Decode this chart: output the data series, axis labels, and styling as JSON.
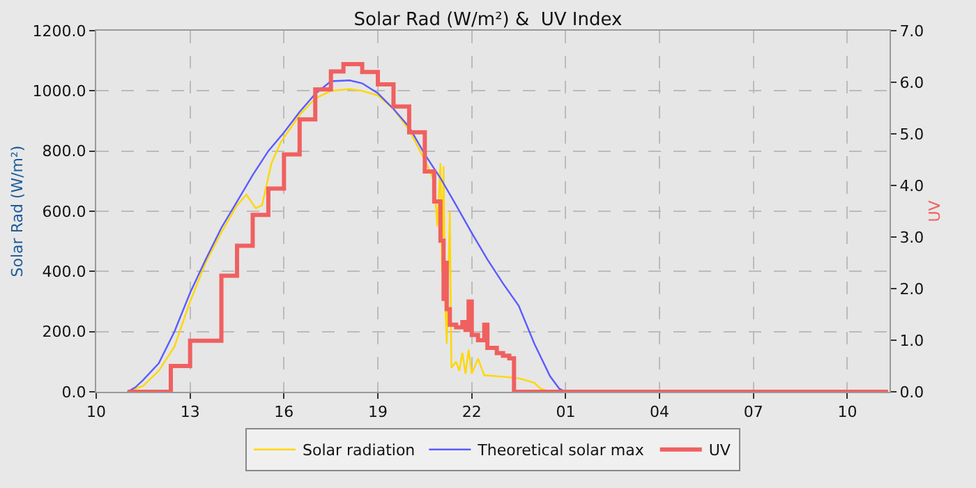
{
  "chart_data": {
    "type": "line",
    "title": "Solar Rad (W/m²) &  UV Index",
    "ylabel": "Solar Rad (W/m²)",
    "y2label": "UV",
    "xlim": [
      "--01-01T10:00",
      "--01-02T11:21"
    ],
    "xticks": [
      {
        "value": "--01-01T10:00",
        "label": "10"
      },
      {
        "value": "--01-01T13:00",
        "label": "13"
      },
      {
        "value": "--01-01T16:00",
        "label": "16"
      },
      {
        "value": "--01-01T19:00",
        "label": "19"
      },
      {
        "value": "--01-01T22:00",
        "label": "22"
      },
      {
        "value": "--01-02T01:00",
        "label": "01"
      },
      {
        "value": "--01-02T04:00",
        "label": "04"
      },
      {
        "value": "--01-02T07:00",
        "label": "07"
      },
      {
        "value": "--01-02T10:00",
        "label": "10"
      }
    ],
    "ylim": [
      0,
      1200
    ],
    "yticks": [
      {
        "value": 0,
        "label": "0.0"
      },
      {
        "value": 200,
        "label": "200.0"
      },
      {
        "value": 400,
        "label": "400.0"
      },
      {
        "value": 600,
        "label": "600.0"
      },
      {
        "value": 800,
        "label": "800.0"
      },
      {
        "value": 1000,
        "label": "1000.0"
      },
      {
        "value": 1200,
        "label": "1200.0"
      }
    ],
    "y2lim": [
      0,
      7
    ],
    "y2ticks": [
      {
        "value": 0,
        "label": "0.0"
      },
      {
        "value": 1,
        "label": "1.0"
      },
      {
        "value": 2,
        "label": "2.0"
      },
      {
        "value": 3,
        "label": "3.0"
      },
      {
        "value": 4,
        "label": "4.0"
      },
      {
        "value": 5,
        "label": "5.0"
      },
      {
        "value": 6,
        "label": "6.0"
      },
      {
        "value": 7,
        "label": "7.0"
      }
    ],
    "grid": true,
    "legend": "bottom",
    "line_style": "solid",
    "marker": "none",
    "series": [
      {
        "name": "Solar radiation",
        "color": "#ffd700",
        "x": [
          "--01-01T11:00",
          "--01-01T11:30",
          "--01-01T12:00",
          "--01-01T12:30",
          "--01-01T13:00",
          "--01-01T13:30",
          "--01-01T14:00",
          "--01-01T14:30",
          "--01-01T14:48",
          "--01-01T15:06",
          "--01-01T15:18",
          "--01-01T15:36",
          "--01-01T15:54",
          "--01-01T16:30",
          "--01-01T17:00",
          "--01-01T17:30",
          "--01-01T18:06",
          "--01-01T18:30",
          "--01-01T19:00",
          "--01-01T19:30",
          "--01-01T20:00",
          "--01-01T20:30",
          "--01-01T20:48",
          "--01-01T20:54",
          "--01-01T21:00",
          "--01-01T21:03",
          "--01-01T21:06",
          "--01-01T21:09",
          "--01-01T21:12",
          "--01-01T21:18",
          "--01-01T21:21",
          "--01-01T21:30",
          "--01-01T21:36",
          "--01-01T21:42",
          "--01-01T21:48",
          "--01-01T21:54",
          "--01-01T22:00",
          "--01-01T22:12",
          "--01-01T22:24",
          "--01-01T23:00",
          "--01-01T23:30",
          "--01-02T00:00",
          "--01-02T00:12",
          "--01-02T00:30",
          "--01-02T06:00",
          "--01-02T11:18"
        ],
        "values": [
          0,
          20,
          70,
          150,
          300,
          430,
          530,
          620,
          655,
          610,
          620,
          760,
          830,
          920,
          975,
          1000,
          1006,
          1000,
          985,
          940,
          870,
          770,
          700,
          550,
          760,
          400,
          750,
          300,
          160,
          600,
          80,
          100,
          70,
          130,
          60,
          140,
          60,
          110,
          55,
          50,
          45,
          30,
          10,
          0,
          0,
          0
        ]
      },
      {
        "name": "Theoretical solar max",
        "color": "#5b5bff",
        "x": [
          "--01-01T11:00",
          "--01-01T11:15",
          "--01-01T11:30",
          "--01-01T12:00",
          "--01-01T12:30",
          "--01-01T13:00",
          "--01-01T13:30",
          "--01-01T14:00",
          "--01-01T14:30",
          "--01-01T15:00",
          "--01-01T15:30",
          "--01-01T16:00",
          "--01-01T16:30",
          "--01-01T17:00",
          "--01-01T17:30",
          "--01-01T18:06",
          "--01-01T18:30",
          "--01-01T19:00",
          "--01-01T19:30",
          "--01-01T20:00",
          "--01-01T20:30",
          "--01-01T21:00",
          "--01-01T21:30",
          "--01-01T22:00",
          "--01-01T22:30",
          "--01-01T23:00",
          "--01-01T23:30",
          "--01-02T00:00",
          "--01-02T00:30",
          "--01-02T00:48",
          "--01-02T01:00",
          "--01-02T06:00",
          "--01-02T11:18"
        ],
        "values": [
          0,
          15,
          39,
          95,
          200,
          329,
          440,
          545,
          632,
          720,
          800,
          862,
          930,
          990,
          1032,
          1035,
          1025,
          992,
          940,
          880,
          789,
          710,
          620,
          528,
          440,
          360,
          286,
          160,
          52,
          10,
          0,
          0,
          0
        ]
      },
      {
        "name": "UV",
        "type": "step",
        "axis": "y2",
        "color": "#f06060",
        "x": [
          "--01-01T11:00",
          "--01-01T12:23",
          "--01-01T13:00",
          "--01-01T14:00",
          "--01-01T14:30",
          "--01-01T15:00",
          "--01-01T15:30",
          "--01-01T16:00",
          "--01-01T16:30",
          "--01-01T17:00",
          "--01-01T17:30",
          "--01-01T17:54",
          "--01-01T18:30",
          "--01-01T19:00",
          "--01-01T19:30",
          "--01-01T20:00",
          "--01-01T20:30",
          "--01-01T20:48",
          "--01-01T21:00",
          "--01-01T21:06",
          "--01-01T21:09",
          "--01-01T21:12",
          "--01-01T21:18",
          "--01-01T21:30",
          "--01-01T21:42",
          "--01-01T21:48",
          "--01-01T21:54",
          "--01-01T22:00",
          "--01-01T22:12",
          "--01-01T22:24",
          "--01-01T22:30",
          "--01-01T22:48",
          "--01-01T23:00",
          "--01-01T23:12",
          "--01-01T23:21",
          "--01-02T06:00",
          "--01-02T11:18"
        ],
        "values": [
          0,
          0.5,
          0.99,
          2.25,
          2.83,
          3.43,
          3.94,
          4.6,
          5.28,
          5.86,
          6.21,
          6.35,
          6.2,
          5.96,
          5.53,
          5.03,
          4.27,
          3.69,
          2.93,
          1.8,
          2.5,
          1.6,
          1.3,
          1.25,
          1.35,
          1.2,
          1.75,
          1.1,
          1.0,
          1.3,
          0.85,
          0.75,
          0.7,
          0.65,
          0,
          0,
          0
        ]
      }
    ]
  }
}
